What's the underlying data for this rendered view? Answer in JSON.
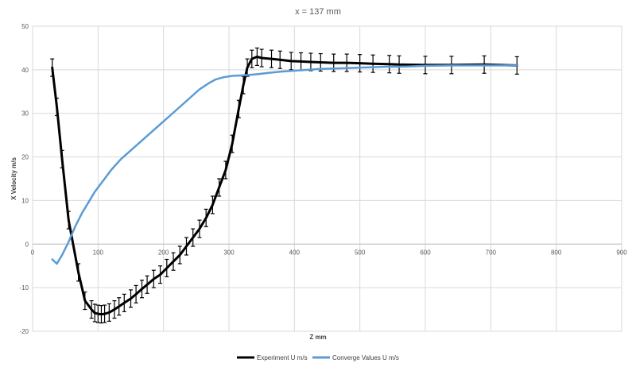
{
  "chart_data": {
    "type": "line",
    "title": "x = 137 mm",
    "xlabel": "Z mm",
    "ylabel": "X Velocity m/s",
    "xlim": [
      0,
      900
    ],
    "ylim": [
      -20,
      50
    ],
    "xticks": [
      0,
      100,
      200,
      300,
      400,
      500,
      600,
      700,
      800,
      900
    ],
    "yticks": [
      -20,
      -10,
      0,
      10,
      20,
      30,
      40,
      50
    ],
    "grid": true,
    "legend_position": "bottom",
    "series": [
      {
        "name": "Experiment U m/s",
        "color": "#000000",
        "error_bars": true,
        "error": 2,
        "points": [
          [
            30,
            40.5
          ],
          [
            37,
            31.5
          ],
          [
            45,
            19.5
          ],
          [
            55,
            5.5
          ],
          [
            70,
            -6.5
          ],
          [
            80,
            -13
          ],
          [
            90,
            -15
          ],
          [
            95,
            -15.8
          ],
          [
            100,
            -16
          ],
          [
            105,
            -16.1
          ],
          [
            110,
            -16
          ],
          [
            117,
            -15.7
          ],
          [
            125,
            -15
          ],
          [
            132,
            -14.3
          ],
          [
            140,
            -13.5
          ],
          [
            150,
            -12.5
          ],
          [
            158,
            -11.5
          ],
          [
            167,
            -10.3
          ],
          [
            175,
            -9.3
          ],
          [
            185,
            -8
          ],
          [
            195,
            -7
          ],
          [
            205,
            -5.5
          ],
          [
            215,
            -4
          ],
          [
            225,
            -2.5
          ],
          [
            235,
            -0.5
          ],
          [
            245,
            1.5
          ],
          [
            255,
            3.5
          ],
          [
            265,
            6
          ],
          [
            275,
            9
          ],
          [
            285,
            13
          ],
          [
            295,
            17
          ],
          [
            305,
            23
          ],
          [
            315,
            31
          ],
          [
            322,
            36.5
          ],
          [
            328,
            40.5
          ],
          [
            335,
            42.5
          ],
          [
            343,
            43
          ],
          [
            350,
            42.7
          ],
          [
            365,
            42.5
          ],
          [
            378,
            42.3
          ],
          [
            395,
            42
          ],
          [
            410,
            41.9
          ],
          [
            425,
            41.8
          ],
          [
            440,
            41.7
          ],
          [
            460,
            41.6
          ],
          [
            480,
            41.6
          ],
          [
            500,
            41.5
          ],
          [
            520,
            41.4
          ],
          [
            545,
            41.3
          ],
          [
            560,
            41.2
          ],
          [
            600,
            41.1
          ],
          [
            640,
            41.1
          ],
          [
            690,
            41.2
          ],
          [
            740,
            41
          ]
        ]
      },
      {
        "name": "Converge Values U m/s",
        "color": "#5B9BD5",
        "error_bars": false,
        "points": [
          [
            30,
            -3.5
          ],
          [
            37,
            -4.5
          ],
          [
            45,
            -2.5
          ],
          [
            55,
            0.5
          ],
          [
            65,
            4
          ],
          [
            75,
            7
          ],
          [
            85,
            9.5
          ],
          [
            95,
            12
          ],
          [
            105,
            14
          ],
          [
            120,
            17
          ],
          [
            135,
            19.5
          ],
          [
            150,
            21.5
          ],
          [
            165,
            23.5
          ],
          [
            180,
            25.5
          ],
          [
            195,
            27.5
          ],
          [
            210,
            29.5
          ],
          [
            225,
            31.5
          ],
          [
            240,
            33.5
          ],
          [
            255,
            35.5
          ],
          [
            270,
            37
          ],
          [
            280,
            37.8
          ],
          [
            292,
            38.3
          ],
          [
            305,
            38.6
          ],
          [
            318,
            38.7
          ],
          [
            330,
            38.8
          ],
          [
            345,
            39
          ],
          [
            360,
            39.3
          ],
          [
            380,
            39.6
          ],
          [
            400,
            39.8
          ],
          [
            420,
            40
          ],
          [
            440,
            40.2
          ],
          [
            460,
            40.3
          ],
          [
            480,
            40.4
          ],
          [
            500,
            40.5
          ],
          [
            520,
            40.6
          ],
          [
            540,
            40.7
          ],
          [
            560,
            40.7
          ],
          [
            580,
            40.8
          ],
          [
            600,
            40.9
          ],
          [
            640,
            41
          ],
          [
            690,
            41
          ],
          [
            740,
            41
          ]
        ]
      }
    ]
  }
}
